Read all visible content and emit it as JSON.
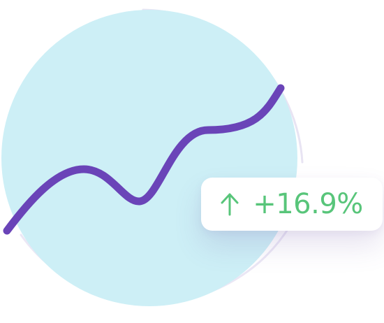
{
  "badge": {
    "direction_icon": "arrow-up-icon",
    "change_text": "+16.9%"
  },
  "colors": {
    "circle_fill": "#cdeff6",
    "ring_stroke": "#e8e4f3",
    "trend_line": "#6a44b8",
    "positive": "#58c57a"
  }
}
